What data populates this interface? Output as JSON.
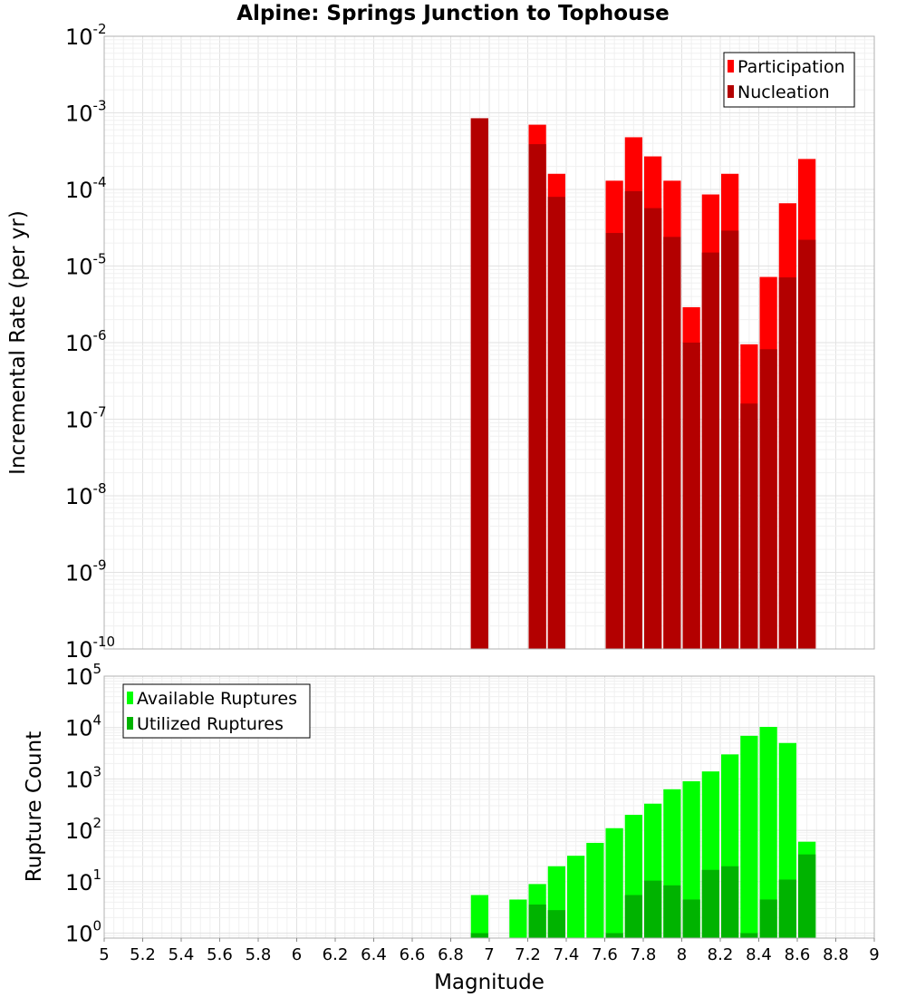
{
  "chart_data": [
    {
      "type": "bar",
      "title": "Alpine: Springs Junction to Tophouse",
      "ylabel": "Incremental Rate (per yr)",
      "xlabel": "",
      "xlim": [
        5,
        9
      ],
      "ylim": [
        1e-10,
        0.01
      ],
      "yscale": "log",
      "y_tick_exponents": [
        -2,
        -3,
        -4,
        -5,
        -6,
        -7,
        -8,
        -9,
        -10
      ],
      "y_tick_base": "10",
      "grid": true,
      "legend_position": "top-right",
      "bin_width": 0.1,
      "series": [
        {
          "name": "Participation",
          "color": "#ff0000",
          "x": [
            6.95,
            7.25,
            7.35,
            7.65,
            7.75,
            7.85,
            7.95,
            8.05,
            8.15,
            8.25,
            8.35,
            8.45,
            8.55,
            8.65
          ],
          "values": [
            0.00085,
            0.0007,
            0.00016,
            0.00013,
            0.00048,
            0.00027,
            0.00013,
            2.9e-06,
            8.6e-05,
            0.00016,
            9.5e-07,
            7.2e-06,
            6.6e-05,
            0.00025
          ]
        },
        {
          "name": "Nucleation",
          "color": "#b30000",
          "x": [
            6.95,
            7.25,
            7.35,
            7.65,
            7.75,
            7.85,
            7.95,
            8.05,
            8.15,
            8.25,
            8.35,
            8.45,
            8.55,
            8.65
          ],
          "values": [
            0.00085,
            0.00039,
            8e-05,
            2.7e-05,
            9.5e-05,
            5.7e-05,
            2.4e-05,
            1e-06,
            1.5e-05,
            2.9e-05,
            1.6e-07,
            8.2e-07,
            7.1e-06,
            2.2e-05
          ]
        }
      ]
    },
    {
      "type": "bar",
      "title": "",
      "ylabel": "Rupture Count",
      "xlabel": "Magnitude",
      "xlim": [
        5,
        9
      ],
      "x_ticks": [
        "5",
        "5.2",
        "5.4",
        "5.6",
        "5.8",
        "6",
        "6.2",
        "6.4",
        "6.6",
        "6.8",
        "7",
        "7.2",
        "7.4",
        "7.6",
        "7.8",
        "8",
        "8.2",
        "8.4",
        "8.6",
        "8.8",
        "9"
      ],
      "ylim": [
        0.8,
        100000.0
      ],
      "yscale": "log",
      "y_tick_exponents": [
        5,
        4,
        3,
        2,
        1,
        0
      ],
      "y_tick_base": "10",
      "grid": true,
      "legend_position": "top-left",
      "bin_width": 0.1,
      "series": [
        {
          "name": "Available Ruptures",
          "color": "#00ff00",
          "x": [
            6.95,
            7.15,
            7.25,
            7.35,
            7.45,
            7.55,
            7.65,
            7.75,
            7.85,
            7.95,
            8.05,
            8.15,
            8.25,
            8.35,
            8.45,
            8.55,
            8.65
          ],
          "values": [
            5.5,
            4.5,
            9,
            20,
            32,
            57,
            110,
            200,
            330,
            630,
            900,
            1400,
            3000,
            6900,
            10300,
            5000,
            60
          ]
        },
        {
          "name": "Utilized Ruptures",
          "color": "#00b300",
          "x": [
            6.95,
            7.15,
            7.25,
            7.35,
            7.45,
            7.55,
            7.65,
            7.75,
            7.85,
            7.95,
            8.05,
            8.15,
            8.25,
            8.35,
            8.45,
            8.55,
            8.65
          ],
          "values": [
            1,
            0,
            3.6,
            2.8,
            0,
            0,
            1,
            5.5,
            10.5,
            8.5,
            4.5,
            17,
            20,
            1,
            4.5,
            11,
            34
          ]
        }
      ]
    }
  ]
}
